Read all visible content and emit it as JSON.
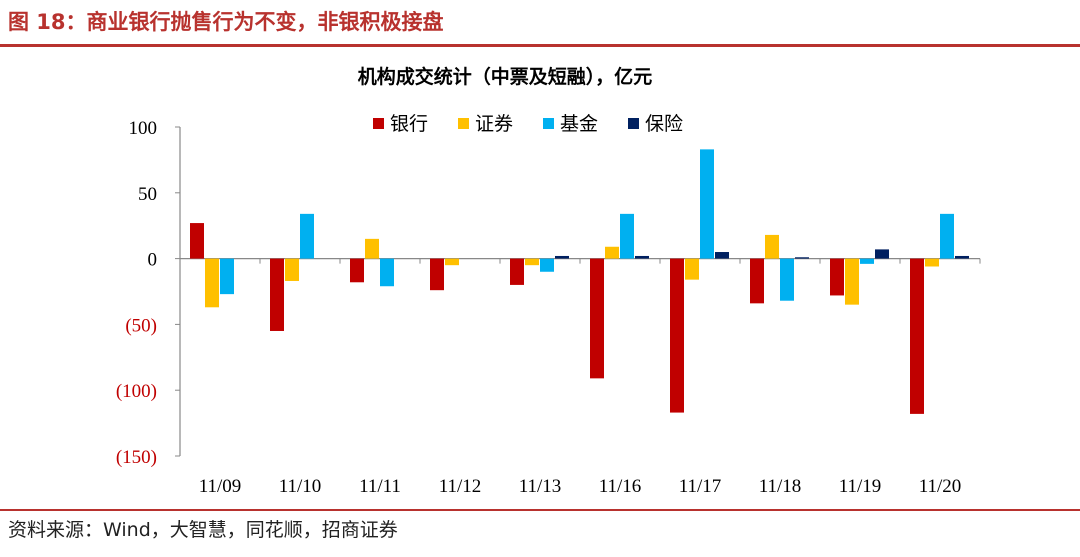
{
  "figure_title": "图 18：商业银行抛售行为不变，非银积极接盘",
  "source": "资料来源：Wind，大智慧，同花顺，招商证券",
  "colors": {
    "accent": "#b8322e",
    "negative_tick": "#c00000",
    "bank": "#c00000",
    "securities": "#ffc000",
    "fund": "#00b0f0",
    "insurance": "#002060"
  },
  "chart_data": {
    "type": "bar",
    "title": "机构成交统计（中票及短融），亿元",
    "xlabel": "",
    "ylabel": "",
    "ylim": [
      -150,
      100
    ],
    "y_ticks": [
      {
        "value": 100,
        "label": "100"
      },
      {
        "value": 50,
        "label": "50"
      },
      {
        "value": 0,
        "label": "0"
      },
      {
        "value": -50,
        "label": "(50)"
      },
      {
        "value": -100,
        "label": "(100)"
      },
      {
        "value": -150,
        "label": "(150)"
      }
    ],
    "legend_position": "top",
    "categories": [
      "11/09",
      "11/10",
      "11/11",
      "11/12",
      "11/13",
      "11/16",
      "11/17",
      "11/18",
      "11/19",
      "11/20"
    ],
    "series": [
      {
        "name": "银行",
        "color": "#c00000",
        "values": [
          27,
          -55,
          -18,
          -24,
          -20,
          -91,
          -117,
          -34,
          -28,
          -118
        ]
      },
      {
        "name": "证券",
        "color": "#ffc000",
        "values": [
          -37,
          -17,
          15,
          -5,
          -5,
          9,
          -16,
          18,
          -35,
          -6
        ]
      },
      {
        "name": "基金",
        "color": "#00b0f0",
        "values": [
          -27,
          34,
          -21,
          0,
          -10,
          34,
          83,
          -32,
          -4,
          34
        ]
      },
      {
        "name": "保险",
        "color": "#002060",
        "values": [
          0,
          0,
          0,
          0,
          2,
          2,
          5,
          1,
          7,
          2
        ]
      }
    ]
  }
}
